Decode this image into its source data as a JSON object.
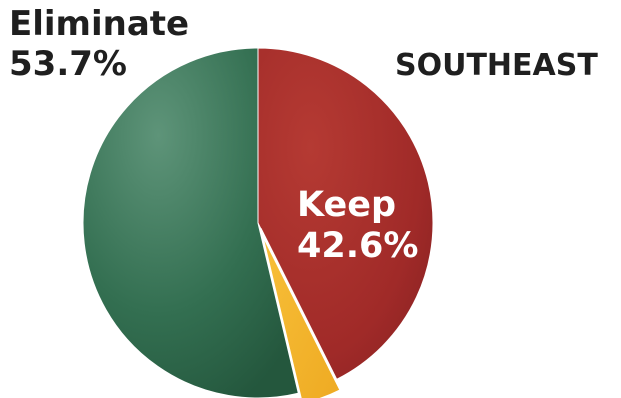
{
  "chart_data": {
    "type": "pie",
    "title": "SOUTHEAST",
    "slices": [
      {
        "label": "Keep",
        "value": 42.6,
        "value_label": "42.6%",
        "color": "#a52a2a"
      },
      {
        "label": "",
        "value": 3.7,
        "value_label": "",
        "color": "#f4b630"
      },
      {
        "label": "Eliminate",
        "value": 53.7,
        "value_label": "53.7%",
        "color": "#2e6a4b"
      }
    ],
    "start_angle_deg": 0,
    "direction": "clockwise",
    "legend": "none"
  }
}
